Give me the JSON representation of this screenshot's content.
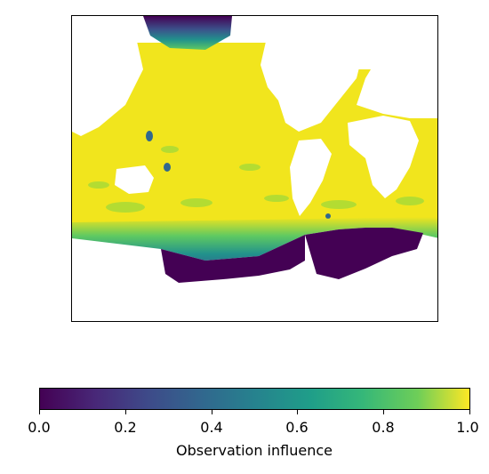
{
  "colorbar": {
    "label": "Observation influence",
    "ticks": [
      "0.0",
      "0.2",
      "0.4",
      "0.6",
      "0.8",
      "1.0"
    ],
    "range": [
      0.0,
      1.0
    ],
    "colormap": "viridis",
    "colors": [
      "#440154",
      "#3b528b",
      "#21918c",
      "#5ec962",
      "#fde725"
    ]
  },
  "map": {
    "projection": "equirectangular, Pacific-centred",
    "land_color": "#ffffff",
    "ocean_influence_dominant": 1.0,
    "high_latitude_influence": 0.0,
    "colors": {
      "high": "#f1e51d",
      "mid": "#9fda3a",
      "low": "#440154",
      "transition": "#31688e"
    }
  }
}
